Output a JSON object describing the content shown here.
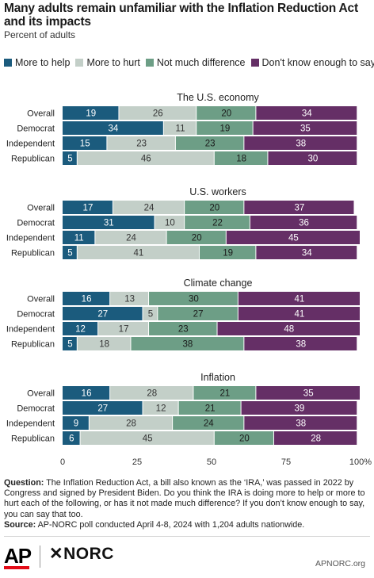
{
  "title": "Many adults remain unfamiliar with the Inflation Reduction Act and its impacts",
  "subtitle": "Percent of adults",
  "legend": [
    {
      "label": "More to help",
      "color": "#1b5b7d"
    },
    {
      "label": "More to hurt",
      "color": "#c3cfc8"
    },
    {
      "label": "Not much difference",
      "color": "#6d9e86"
    },
    {
      "label": "Don't know enough to say",
      "color": "#652f66"
    }
  ],
  "chart_data": {
    "type": "bar",
    "orientation": "horizontal",
    "stacked": true,
    "xlim": [
      0,
      100
    ],
    "xticks": [
      "0",
      "25",
      "50",
      "75",
      "100%"
    ],
    "series_names": [
      "More to help",
      "More to hurt",
      "Not much difference",
      "Don't know enough to say"
    ],
    "panels": [
      {
        "title": "The U.S. economy",
        "rows": [
          {
            "label": "Overall",
            "values": [
              19,
              26,
              20,
              34
            ]
          },
          {
            "label": "Democrat",
            "values": [
              34,
              11,
              19,
              35
            ]
          },
          {
            "label": "Independent",
            "values": [
              15,
              23,
              23,
              38
            ]
          },
          {
            "label": "Republican",
            "values": [
              5,
              46,
              18,
              30
            ]
          }
        ]
      },
      {
        "title": "U.S. workers",
        "rows": [
          {
            "label": "Overall",
            "values": [
              17,
              24,
              20,
              37
            ]
          },
          {
            "label": "Democrat",
            "values": [
              31,
              10,
              22,
              36
            ]
          },
          {
            "label": "Independent",
            "values": [
              11,
              24,
              20,
              45
            ]
          },
          {
            "label": "Republican",
            "values": [
              5,
              41,
              19,
              34
            ]
          }
        ]
      },
      {
        "title": "Climate change",
        "rows": [
          {
            "label": "Overall",
            "values": [
              16,
              13,
              30,
              41
            ]
          },
          {
            "label": "Democrat",
            "values": [
              27,
              5,
              27,
              41
            ]
          },
          {
            "label": "Independent",
            "values": [
              12,
              17,
              23,
              48
            ]
          },
          {
            "label": "Republican",
            "values": [
              5,
              18,
              38,
              38
            ]
          }
        ]
      },
      {
        "title": "Inflation",
        "rows": [
          {
            "label": "Overall",
            "values": [
              16,
              28,
              21,
              35
            ]
          },
          {
            "label": "Democrat",
            "values": [
              27,
              12,
              21,
              39
            ]
          },
          {
            "label": "Independent",
            "values": [
              9,
              28,
              24,
              38
            ]
          },
          {
            "label": "Republican",
            "values": [
              6,
              45,
              20,
              28
            ]
          }
        ]
      }
    ]
  },
  "notes": {
    "question_label": "Question:",
    "question_text": "The Inflation Reduction Act, a bill also known as the ‘IRA,’ was passed in 2022 by Congress and signed by President Biden. Do you think the IRA is doing more to help or more to hurt each of the following, or has it not made much difference? If you don’t know enough to say, you can say that too.",
    "source_label": "Source:",
    "source_text": "AP-NORC poll conducted April 4-8, 2024 with 1,204 adults nationwide."
  },
  "footer": {
    "ap_logo": "AP",
    "norc_logo": "✕NORC",
    "credit": "APNORC.org"
  }
}
